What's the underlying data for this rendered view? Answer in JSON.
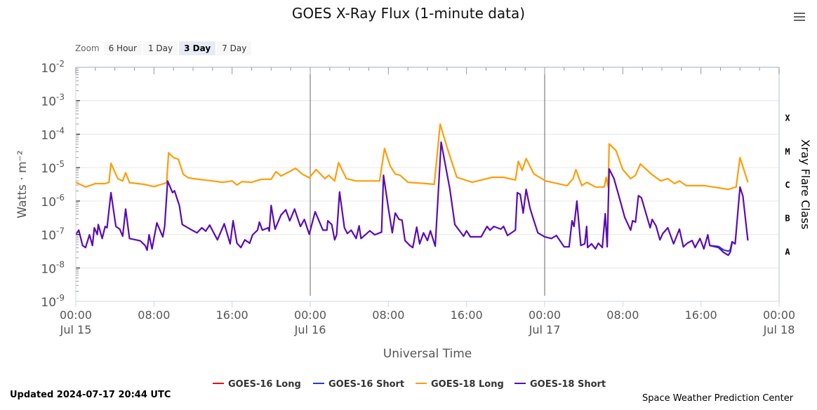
{
  "menu_icon": "hamburger-menu-icon",
  "zoom": {
    "label": "Zoom",
    "buttons": [
      "6 Hour",
      "1 Day",
      "3 Day",
      "7 Day"
    ],
    "active": "3 Day"
  },
  "footer": {
    "updated": "Updated 2024-07-17 20:44 UTC",
    "credit": "Space Weather Prediction Center"
  },
  "chart_data": {
    "type": "line",
    "title": "GOES X-Ray Flux (1-minute data)",
    "xlabel": "Universal Time",
    "ylabel": "Watts · m⁻²",
    "y2label": "Xray Flare Class",
    "yscale": "log",
    "ylim_log10": [
      -9,
      -2
    ],
    "y_tick_labels": [
      {
        "base": "10",
        "exp": "-2"
      },
      {
        "base": "10",
        "exp": "-3"
      },
      {
        "base": "10",
        "exp": "-4"
      },
      {
        "base": "10",
        "exp": "-5"
      },
      {
        "base": "10",
        "exp": "-6"
      },
      {
        "base": "10",
        "exp": "-7"
      },
      {
        "base": "10",
        "exp": "-8"
      },
      {
        "base": "10",
        "exp": "-9"
      }
    ],
    "flare_classes": [
      {
        "label": "X",
        "log10": -3.5
      },
      {
        "label": "M",
        "log10": -4.5
      },
      {
        "label": "C",
        "log10": -5.5
      },
      {
        "label": "B",
        "log10": -6.5
      },
      {
        "label": "A",
        "log10": -7.5
      }
    ],
    "x_unit": "hours since 2024-07-15 00:00 UTC",
    "xlim_hours": [
      0,
      72
    ],
    "x_ticks": [
      {
        "h": 0,
        "time": "00:00",
        "date": "Jul 15"
      },
      {
        "h": 8,
        "time": "08:00",
        "date": ""
      },
      {
        "h": 16,
        "time": "16:00",
        "date": ""
      },
      {
        "h": 24,
        "time": "00:00",
        "date": "Jul 16"
      },
      {
        "h": 32,
        "time": "08:00",
        "date": ""
      },
      {
        "h": 40,
        "time": "16:00",
        "date": ""
      },
      {
        "h": 48,
        "time": "00:00",
        "date": "Jul 17"
      },
      {
        "h": 56,
        "time": "08:00",
        "date": ""
      },
      {
        "h": 64,
        "time": "16:00",
        "date": ""
      },
      {
        "h": 72,
        "time": "00:00",
        "date": "Jul 18"
      }
    ],
    "day_lines_hours": [
      24,
      48
    ],
    "legend": "bottom-center",
    "series": [
      {
        "name": "GOES-16 Long",
        "color": "#e8120c",
        "points": []
      },
      {
        "name": "GOES-16 Short",
        "color": "#1f3cdc",
        "points": [
          [
            64.9,
            -7.33
          ],
          [
            65.8,
            -7.36
          ],
          [
            66.3,
            -7.46
          ],
          [
            66.8,
            -7.5
          ],
          [
            67,
            -7.46
          ],
          [
            67.2,
            -7.2
          ]
        ]
      },
      {
        "name": "GOES-18 Long",
        "color": "#ff9d0a",
        "points": [
          [
            0,
            -5.44
          ],
          [
            1,
            -5.58
          ],
          [
            2,
            -5.48
          ],
          [
            3,
            -5.48
          ],
          [
            3.4,
            -5.44
          ],
          [
            3.6,
            -4.87
          ],
          [
            4.3,
            -5.33
          ],
          [
            4.8,
            -5.4
          ],
          [
            5.1,
            -5.15
          ],
          [
            5.5,
            -5.45
          ],
          [
            7,
            -5.5
          ],
          [
            8,
            -5.57
          ],
          [
            9,
            -5.48
          ],
          [
            9.3,
            -5.45
          ],
          [
            9.5,
            -4.56
          ],
          [
            10,
            -4.7
          ],
          [
            10.5,
            -4.75
          ],
          [
            11,
            -5.2
          ],
          [
            11.5,
            -5.3
          ],
          [
            12,
            -5.33
          ],
          [
            14,
            -5.4
          ],
          [
            15,
            -5.44
          ],
          [
            16,
            -5.4
          ],
          [
            16.5,
            -5.52
          ],
          [
            17,
            -5.42
          ],
          [
            18,
            -5.44
          ],
          [
            19,
            -5.35
          ],
          [
            20,
            -5.35
          ],
          [
            20.5,
            -5.12
          ],
          [
            21,
            -5.25
          ],
          [
            22,
            -5.1
          ],
          [
            22.5,
            -5.02
          ],
          [
            23.2,
            -5.2
          ],
          [
            23.9,
            -5.3
          ],
          [
            24.6,
            -5.06
          ],
          [
            25.5,
            -5.33
          ],
          [
            25.9,
            -5.23
          ],
          [
            26.5,
            -5.4
          ],
          [
            26.9,
            -4.85
          ],
          [
            27.7,
            -5.33
          ],
          [
            28.7,
            -5.4
          ],
          [
            31.1,
            -5.4
          ],
          [
            31.6,
            -4.43
          ],
          [
            32.2,
            -4.96
          ],
          [
            32.7,
            -5.19
          ],
          [
            33.2,
            -5.23
          ],
          [
            34,
            -5.44
          ],
          [
            35.9,
            -5.48
          ],
          [
            36.7,
            -5.5
          ],
          [
            37.3,
            -3.7
          ],
          [
            38,
            -4.39
          ],
          [
            39,
            -5.29
          ],
          [
            40.6,
            -5.44
          ],
          [
            42.6,
            -5.29
          ],
          [
            43.8,
            -5.29
          ],
          [
            45,
            -5.37
          ],
          [
            45.3,
            -4.81
          ],
          [
            45.7,
            -5.08
          ],
          [
            46.1,
            -4.73
          ],
          [
            46.9,
            -5.19
          ],
          [
            48.1,
            -5.4
          ],
          [
            50.3,
            -5.54
          ],
          [
            50.9,
            -5.33
          ],
          [
            51.2,
            -5.06
          ],
          [
            51.8,
            -5.54
          ],
          [
            52.3,
            -5.44
          ],
          [
            53.2,
            -5.58
          ],
          [
            54.1,
            -5.58
          ],
          [
            54.3,
            -5.29
          ],
          [
            54.5,
            -5.58
          ],
          [
            54.6,
            -4.29
          ],
          [
            55.3,
            -4.49
          ],
          [
            56,
            -5.06
          ],
          [
            56.8,
            -5.33
          ],
          [
            57.3,
            -5.23
          ],
          [
            57.8,
            -4.89
          ],
          [
            58.9,
            -5.19
          ],
          [
            59.9,
            -5.4
          ],
          [
            60.6,
            -5.33
          ],
          [
            61.3,
            -5.48
          ],
          [
            61.8,
            -5.4
          ],
          [
            62.5,
            -5.54
          ],
          [
            64.4,
            -5.54
          ],
          [
            66.8,
            -5.65
          ],
          [
            67.6,
            -5.58
          ],
          [
            68,
            -4.7
          ],
          [
            68.8,
            -5.44
          ]
        ]
      },
      {
        "name": "GOES-18 Short",
        "color": "#5a0bb5",
        "points": [
          [
            0,
            -7
          ],
          [
            0.3,
            -6.87
          ],
          [
            0.7,
            -7.33
          ],
          [
            1,
            -7.39
          ],
          [
            1.4,
            -7.01
          ],
          [
            1.7,
            -7.33
          ],
          [
            1.9,
            -6.8
          ],
          [
            2.2,
            -7
          ],
          [
            2.3,
            -6.7
          ],
          [
            2.7,
            -7.12
          ],
          [
            3,
            -6.76
          ],
          [
            3.2,
            -6.8
          ],
          [
            3.6,
            -5.75
          ],
          [
            4.1,
            -6.76
          ],
          [
            4.5,
            -6.84
          ],
          [
            4.8,
            -7.05
          ],
          [
            5.1,
            -6.24
          ],
          [
            5.5,
            -7.12
          ],
          [
            6.6,
            -7.19
          ],
          [
            7.1,
            -7.33
          ],
          [
            7.3,
            -7.47
          ],
          [
            7.5,
            -7.01
          ],
          [
            7.8,
            -7.43
          ],
          [
            8.3,
            -6.65
          ],
          [
            8.9,
            -7.07
          ],
          [
            9.1,
            -6.76
          ],
          [
            9.4,
            -5.4
          ],
          [
            9.9,
            -5.75
          ],
          [
            10.1,
            -5.69
          ],
          [
            10.6,
            -6.13
          ],
          [
            10.9,
            -6.7
          ],
          [
            11.9,
            -6.87
          ],
          [
            12.4,
            -6.95
          ],
          [
            12.9,
            -6.8
          ],
          [
            13.3,
            -6.9
          ],
          [
            13.7,
            -6.72
          ],
          [
            14.5,
            -7.16
          ],
          [
            15.2,
            -6.68
          ],
          [
            15.8,
            -7.28
          ],
          [
            16.1,
            -6.59
          ],
          [
            16.5,
            -7.26
          ],
          [
            16.9,
            -7.39
          ],
          [
            17.3,
            -7.16
          ],
          [
            17.8,
            -7.26
          ],
          [
            18.1,
            -7.01
          ],
          [
            18.6,
            -6.87
          ],
          [
            18.8,
            -6.63
          ],
          [
            19.1,
            -6.87
          ],
          [
            19.7,
            -6.8
          ],
          [
            19.8,
            -6.9
          ],
          [
            20,
            -6.13
          ],
          [
            20.4,
            -6.84
          ],
          [
            21,
            -6.42
          ],
          [
            21.5,
            -6.26
          ],
          [
            21.9,
            -6.59
          ],
          [
            22.4,
            -6.24
          ],
          [
            22.8,
            -6.59
          ],
          [
            23,
            -6.76
          ],
          [
            23.4,
            -6.55
          ],
          [
            23.9,
            -6.99
          ],
          [
            24.5,
            -6.32
          ],
          [
            25.3,
            -6.87
          ],
          [
            25.7,
            -6.87
          ],
          [
            25.8,
            -6.59
          ],
          [
            26.2,
            -6.7
          ],
          [
            26.5,
            -7.16
          ],
          [
            26.7,
            -7.01
          ],
          [
            27,
            -5.73
          ],
          [
            27.5,
            -6.8
          ],
          [
            27.8,
            -6.97
          ],
          [
            28.2,
            -6.87
          ],
          [
            28.7,
            -7.12
          ],
          [
            29,
            -6.74
          ],
          [
            29.2,
            -7.12
          ],
          [
            29.8,
            -6.97
          ],
          [
            30.1,
            -6.89
          ],
          [
            30.6,
            -7.01
          ],
          [
            31.3,
            -6.93
          ],
          [
            31.5,
            -5.23
          ],
          [
            32,
            -6.21
          ],
          [
            32.4,
            -6.95
          ],
          [
            32.7,
            -6.36
          ],
          [
            33.1,
            -6.55
          ],
          [
            33.4,
            -6.57
          ],
          [
            33.7,
            -7.18
          ],
          [
            34.2,
            -7.33
          ],
          [
            34.5,
            -7.39
          ],
          [
            34.9,
            -6.78
          ],
          [
            35.2,
            -7.28
          ],
          [
            35.6,
            -6.95
          ],
          [
            36,
            -7.18
          ],
          [
            36.3,
            -6.89
          ],
          [
            36.8,
            -7.35
          ],
          [
            37.4,
            -4.24
          ],
          [
            38.3,
            -5.65
          ],
          [
            38.8,
            -6.7
          ],
          [
            39.7,
            -7.05
          ],
          [
            40,
            -6.89
          ],
          [
            40.4,
            -7.07
          ],
          [
            41.5,
            -7.07
          ],
          [
            42.1,
            -6.76
          ],
          [
            42.4,
            -6.87
          ],
          [
            42.8,
            -6.76
          ],
          [
            43.5,
            -6.84
          ],
          [
            43.8,
            -6.76
          ],
          [
            44.2,
            -7.03
          ],
          [
            45,
            -6.87
          ],
          [
            45.2,
            -5.75
          ],
          [
            45.5,
            -5.8
          ],
          [
            45.8,
            -6.36
          ],
          [
            46.1,
            -5.65
          ],
          [
            46.5,
            -6.21
          ],
          [
            46.9,
            -6.59
          ],
          [
            47.3,
            -6.95
          ],
          [
            48,
            -7.07
          ],
          [
            48.7,
            -7.12
          ],
          [
            49.2,
            -7.03
          ],
          [
            50,
            -7.37
          ],
          [
            50.5,
            -7.37
          ],
          [
            50.8,
            -6.59
          ],
          [
            51,
            -6.76
          ],
          [
            51.3,
            -6
          ],
          [
            51.7,
            -7.33
          ],
          [
            52.1,
            -7.28
          ],
          [
            52.3,
            -6.76
          ],
          [
            52.4,
            -7.39
          ],
          [
            52.8,
            -7.28
          ],
          [
            53.2,
            -7.43
          ],
          [
            53.5,
            -7.26
          ],
          [
            53.9,
            -7.39
          ],
          [
            54.2,
            -6.38
          ],
          [
            54.4,
            -7.37
          ],
          [
            54.6,
            -5.04
          ],
          [
            55.1,
            -5.33
          ],
          [
            55.7,
            -5.96
          ],
          [
            56.2,
            -6.49
          ],
          [
            56.8,
            -6.87
          ],
          [
            57,
            -6.59
          ],
          [
            57.3,
            -6.63
          ],
          [
            57.6,
            -5.84
          ],
          [
            57.9,
            -5.9
          ],
          [
            58.8,
            -6.8
          ],
          [
            59,
            -6.55
          ],
          [
            59.4,
            -6.74
          ],
          [
            59.8,
            -7.16
          ],
          [
            60.1,
            -6.97
          ],
          [
            60.6,
            -6.8
          ],
          [
            61.2,
            -7.28
          ],
          [
            61.8,
            -6.84
          ],
          [
            62.2,
            -7.37
          ],
          [
            62.6,
            -7.26
          ],
          [
            63.1,
            -7.18
          ],
          [
            63.4,
            -7.39
          ],
          [
            63.9,
            -7.12
          ],
          [
            64.3,
            -7.43
          ],
          [
            64.7,
            -7.01
          ],
          [
            64.9,
            -7.33
          ],
          [
            65.8,
            -7.39
          ],
          [
            66.3,
            -7.53
          ],
          [
            66.8,
            -7.62
          ],
          [
            67,
            -7.53
          ],
          [
            67.2,
            -7.22
          ],
          [
            67.5,
            -7.28
          ],
          [
            68,
            -5.58
          ],
          [
            68.3,
            -5.86
          ],
          [
            68.8,
            -7.18
          ]
        ]
      }
    ]
  }
}
